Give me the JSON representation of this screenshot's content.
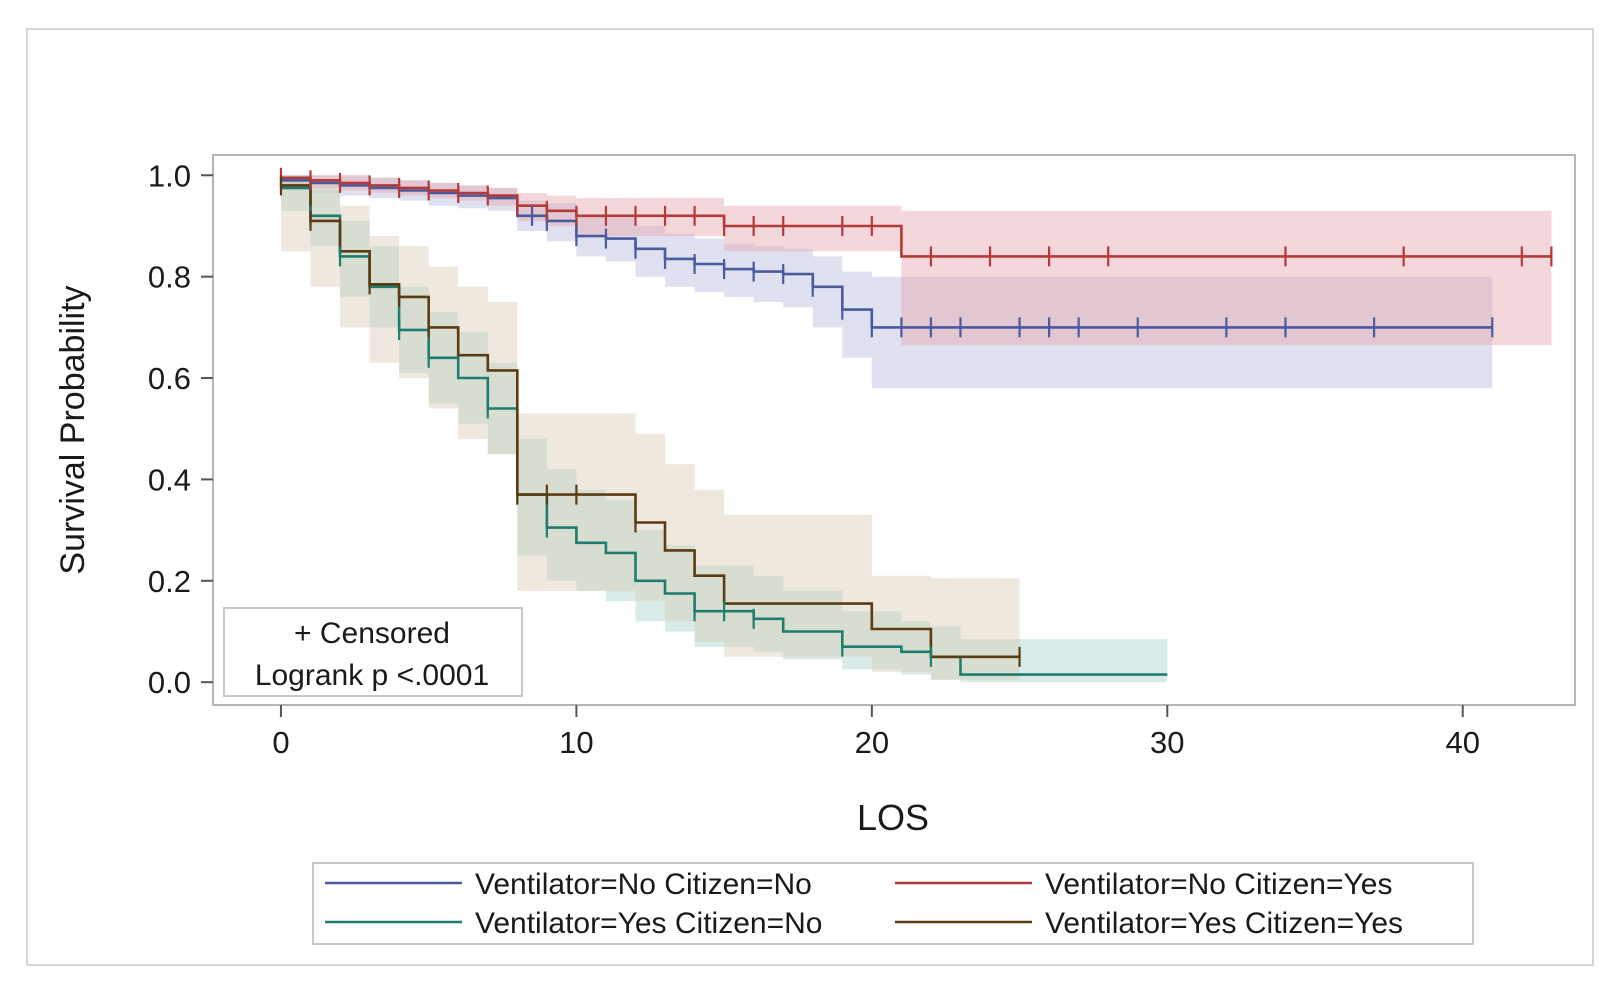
{
  "chart_data": {
    "type": "line",
    "subtype": "kaplan-meier",
    "title": "",
    "xlabel": "LOS",
    "ylabel": "Survival Probability",
    "xlim": [
      -2.3,
      43.8
    ],
    "ylim": [
      -0.045,
      1.04
    ],
    "xticks": [
      0,
      10,
      20,
      30,
      40
    ],
    "yticks": [
      0.0,
      0.2,
      0.4,
      0.6,
      0.8,
      1.0
    ],
    "xtick_labels": [
      "0",
      "10",
      "20",
      "30",
      "40"
    ],
    "ytick_labels": [
      "0.0",
      "0.2",
      "0.4",
      "0.6",
      "0.8",
      "1.0"
    ],
    "grid": false,
    "inset": {
      "line1": "+ Censored",
      "line2": "Logrank p <.0001",
      "placement": "bottom-left"
    },
    "legend": {
      "placement": "bottom",
      "columns": 2
    },
    "series": [
      {
        "name": "Ventilator=No Citizen=No",
        "color": "#4a5a9c",
        "band_color": "#b9bde0",
        "x": [
          0,
          1,
          2,
          3,
          4,
          5,
          6,
          7,
          8,
          9,
          10,
          11,
          12,
          13,
          14,
          15,
          16,
          17,
          18,
          19,
          20,
          41
        ],
        "y": [
          0.99,
          0.985,
          0.98,
          0.975,
          0.97,
          0.965,
          0.96,
          0.955,
          0.92,
          0.91,
          0.88,
          0.875,
          0.855,
          0.835,
          0.825,
          0.815,
          0.81,
          0.805,
          0.78,
          0.735,
          0.7,
          0.7
        ],
        "lower": [
          0.97,
          0.965,
          0.96,
          0.955,
          0.95,
          0.94,
          0.935,
          0.93,
          0.89,
          0.87,
          0.84,
          0.83,
          0.8,
          0.78,
          0.77,
          0.76,
          0.75,
          0.74,
          0.7,
          0.64,
          0.58,
          0.58
        ],
        "upper": [
          1.0,
          1.0,
          1.0,
          0.995,
          0.99,
          0.985,
          0.98,
          0.975,
          0.95,
          0.945,
          0.92,
          0.915,
          0.9,
          0.885,
          0.875,
          0.865,
          0.86,
          0.855,
          0.84,
          0.81,
          0.8,
          0.8
        ],
        "censored_x": [
          8.5,
          9,
          10,
          11,
          12,
          13,
          14,
          15,
          16,
          17,
          18,
          19,
          20,
          21,
          22,
          23,
          25,
          26,
          27,
          29,
          32,
          34,
          37,
          41
        ]
      },
      {
        "name": "Ventilator=No Citizen=Yes",
        "color": "#b23a3a",
        "band_color": "#e6a7ae",
        "x": [
          0,
          1,
          2,
          3,
          4,
          5,
          6,
          7,
          8,
          9,
          10,
          15,
          21,
          43
        ],
        "y": [
          0.995,
          0.99,
          0.985,
          0.98,
          0.975,
          0.97,
          0.965,
          0.96,
          0.94,
          0.93,
          0.92,
          0.9,
          0.84,
          0.84
        ],
        "lower": [
          0.98,
          0.975,
          0.97,
          0.965,
          0.96,
          0.955,
          0.95,
          0.94,
          0.91,
          0.9,
          0.88,
          0.85,
          0.665,
          0.665
        ],
        "upper": [
          1.0,
          1.0,
          1.0,
          0.995,
          0.99,
          0.985,
          0.98,
          0.975,
          0.965,
          0.96,
          0.955,
          0.94,
          0.93,
          0.93
        ],
        "censored_x": [
          0,
          1,
          2,
          3,
          4,
          5,
          6,
          7,
          8,
          9,
          10,
          11,
          12,
          13,
          14,
          15,
          16,
          17,
          19,
          20,
          22,
          24,
          26,
          28,
          34,
          38,
          42,
          43
        ]
      },
      {
        "name": "Ventilator=Yes Citizen=No",
        "color": "#1f7d6e",
        "band_color": "#a9d2cc",
        "x": [
          0,
          1,
          2,
          3,
          4,
          5,
          6,
          7,
          8,
          9,
          10,
          11,
          12,
          13,
          14,
          16,
          17,
          19,
          21,
          22,
          23,
          30
        ],
        "y": [
          0.975,
          0.92,
          0.84,
          0.78,
          0.695,
          0.64,
          0.6,
          0.54,
          0.37,
          0.305,
          0.275,
          0.255,
          0.2,
          0.175,
          0.14,
          0.125,
          0.1,
          0.07,
          0.06,
          0.05,
          0.015,
          0.015
        ],
        "lower": [
          0.93,
          0.86,
          0.76,
          0.7,
          0.61,
          0.55,
          0.51,
          0.45,
          0.25,
          0.2,
          0.18,
          0.16,
          0.12,
          0.1,
          0.07,
          0.06,
          0.045,
          0.025,
          0.015,
          0.005,
          0.0,
          0.0
        ],
        "upper": [
          1.0,
          0.97,
          0.91,
          0.86,
          0.78,
          0.73,
          0.69,
          0.63,
          0.48,
          0.42,
          0.38,
          0.36,
          0.3,
          0.27,
          0.23,
          0.21,
          0.18,
          0.14,
          0.12,
          0.11,
          0.085,
          0.085
        ],
        "censored_x": [
          1,
          2,
          4,
          5,
          7,
          8,
          9,
          14,
          15,
          16,
          19,
          22
        ]
      },
      {
        "name": "Ventilator=Yes Citizen=Yes",
        "color": "#5c3a12",
        "band_color": "#d9cbb6",
        "x": [
          0,
          1,
          2,
          3,
          4,
          5,
          6,
          7,
          8,
          12,
          13,
          14,
          15,
          20,
          22,
          25
        ],
        "y": [
          0.98,
          0.91,
          0.85,
          0.785,
          0.76,
          0.7,
          0.645,
          0.615,
          0.37,
          0.315,
          0.26,
          0.21,
          0.155,
          0.105,
          0.05,
          0.05
        ],
        "lower": [
          0.85,
          0.78,
          0.7,
          0.63,
          0.6,
          0.54,
          0.48,
          0.45,
          0.18,
          0.16,
          0.12,
          0.08,
          0.05,
          0.02,
          0.005,
          0.005
        ],
        "upper": [
          1.0,
          0.99,
          0.94,
          0.88,
          0.86,
          0.82,
          0.78,
          0.75,
          0.53,
          0.49,
          0.43,
          0.38,
          0.33,
          0.21,
          0.205,
          0.205
        ],
        "censored_x": [
          0,
          1,
          3,
          4,
          5,
          8,
          9,
          10,
          12,
          25
        ]
      }
    ]
  }
}
